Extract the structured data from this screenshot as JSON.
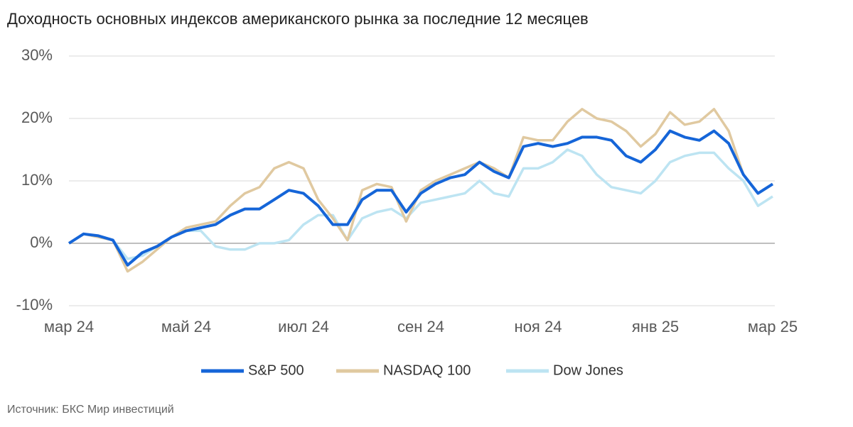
{
  "chart_data": {
    "type": "line",
    "title": "Доходность основных индексов американского рынка за последние 12 месяцев",
    "source": "Источник: БКС Мир инвестиций",
    "categories": [
      "мар 24",
      null,
      null,
      null,
      null,
      null,
      null,
      null,
      "май 24",
      null,
      null,
      null,
      null,
      null,
      null,
      null,
      "июл 24",
      null,
      null,
      null,
      null,
      null,
      null,
      null,
      "сен 24",
      null,
      null,
      null,
      null,
      null,
      null,
      null,
      "ноя 24",
      null,
      null,
      null,
      null,
      null,
      null,
      null,
      "янв 25",
      null,
      null,
      null,
      null,
      null,
      null,
      null,
      "мар 25"
    ],
    "series": [
      {
        "name": "S&P 500",
        "color": "#1565d8",
        "values": [
          0,
          1.5,
          1.2,
          0.5,
          -3.5,
          -1.5,
          -0.5,
          1,
          2,
          2.5,
          3,
          4.5,
          5.5,
          5.5,
          7,
          8.5,
          8,
          6,
          3,
          3,
          7,
          8.5,
          8.5,
          5,
          8,
          9.5,
          10.5,
          11,
          13,
          11.5,
          10.5,
          15.5,
          16,
          15.5,
          16,
          17,
          17,
          16.5,
          14,
          13,
          15,
          18,
          17,
          16.5,
          18,
          16,
          11,
          8,
          9.5
        ]
      },
      {
        "name": "NASDAQ 100",
        "color": "#e0c9a0",
        "values": [
          0,
          1.5,
          1,
          0.5,
          -4.5,
          -3,
          -1,
          1,
          2.5,
          3,
          3.5,
          6,
          8,
          9,
          12,
          13,
          12,
          7,
          4,
          0.5,
          8.5,
          9.5,
          9,
          3.5,
          8.5,
          10,
          11,
          12,
          13,
          12,
          10.5,
          17,
          16.5,
          16.5,
          19.5,
          21.5,
          20,
          19.5,
          18,
          15.5,
          17.5,
          21,
          19,
          19.5,
          21.5,
          18,
          11,
          8,
          9.5
        ]
      },
      {
        "name": "Dow Jones",
        "color": "#bde4f2",
        "values": [
          0,
          1.5,
          1,
          0.5,
          -2.5,
          -2,
          -0.5,
          1,
          2,
          2,
          -0.5,
          -1,
          -1,
          0,
          0,
          0.5,
          3,
          4.5,
          4.5,
          0.5,
          4,
          5,
          5.5,
          4,
          6.5,
          7,
          7.5,
          8,
          10,
          8,
          7.5,
          12,
          12,
          13,
          15,
          14,
          11,
          9,
          8.5,
          8,
          10,
          13,
          14,
          14.5,
          14.5,
          12,
          10,
          6,
          7.5
        ]
      }
    ],
    "ylim": [
      -10,
      30
    ],
    "yticks": [
      {
        "value": -10,
        "label": "-10%"
      },
      {
        "value": 0,
        "label": "0%"
      },
      {
        "value": 10,
        "label": "10%"
      },
      {
        "value": 20,
        "label": "20%"
      },
      {
        "value": 30,
        "label": "30%"
      }
    ],
    "grid": true
  }
}
